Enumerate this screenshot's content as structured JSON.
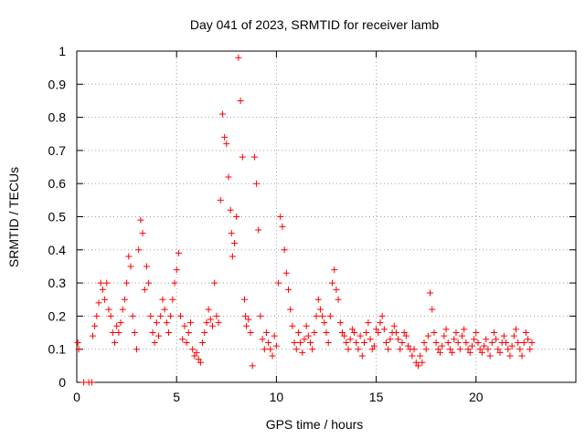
{
  "chart_data": {
    "type": "scatter",
    "title": "Day 041 of 2023, SRMTID for receiver lamb",
    "xlabel": "GPS time / hours",
    "ylabel": "SRMTID / TECUs",
    "xlim": [
      0,
      25
    ],
    "ylim": [
      0,
      1
    ],
    "xticks": [
      0,
      5,
      10,
      15,
      20
    ],
    "xtick_labels": [
      "0",
      "5",
      "10",
      "15",
      "20"
    ],
    "yticks": [
      0,
      0.1,
      0.2,
      0.3,
      0.4,
      0.5,
      0.6,
      0.7,
      0.8,
      0.9,
      1.0
    ],
    "ytick_labels": [
      "0",
      "0.1",
      "0.2",
      "0.3",
      "0.4",
      "0.5",
      "0.6",
      "0.7",
      "0.8",
      "0.9",
      "1"
    ],
    "grid": true,
    "marker": "+",
    "color": "#ff0000",
    "series": [
      {
        "name": "SRMTID",
        "x": [
          0.05,
          0.1,
          0.35,
          0.6,
          0.75,
          0.8,
          0.9,
          1.0,
          1.1,
          1.2,
          1.3,
          1.4,
          1.5,
          1.6,
          1.7,
          1.8,
          1.9,
          2.0,
          2.1,
          2.2,
          2.3,
          2.4,
          2.5,
          2.6,
          2.7,
          2.8,
          2.9,
          3.0,
          3.1,
          3.2,
          3.3,
          3.4,
          3.5,
          3.6,
          3.7,
          3.8,
          3.9,
          4.0,
          4.1,
          4.2,
          4.3,
          4.4,
          4.5,
          4.6,
          4.7,
          4.8,
          4.9,
          5.0,
          5.1,
          5.2,
          5.3,
          5.4,
          5.5,
          5.6,
          5.7,
          5.8,
          5.9,
          6.0,
          6.1,
          6.2,
          6.3,
          6.4,
          6.5,
          6.6,
          6.7,
          6.8,
          6.9,
          7.0,
          7.1,
          7.2,
          7.3,
          7.4,
          7.5,
          7.6,
          7.7,
          7.75,
          7.8,
          7.9,
          8.0,
          8.1,
          8.2,
          8.3,
          8.4,
          8.45,
          8.5,
          8.6,
          8.7,
          8.8,
          8.9,
          9.0,
          9.1,
          9.2,
          9.3,
          9.4,
          9.5,
          9.6,
          9.7,
          9.8,
          9.9,
          10.0,
          10.1,
          10.2,
          10.3,
          10.4,
          10.5,
          10.6,
          10.7,
          10.8,
          10.9,
          11.0,
          11.1,
          11.2,
          11.3,
          11.4,
          11.5,
          11.6,
          11.7,
          11.8,
          11.9,
          12.0,
          12.1,
          12.2,
          12.3,
          12.4,
          12.5,
          12.6,
          12.7,
          12.8,
          12.9,
          13.0,
          13.1,
          13.2,
          13.3,
          13.4,
          13.5,
          13.6,
          13.7,
          13.8,
          13.9,
          14.0,
          14.1,
          14.2,
          14.3,
          14.4,
          14.5,
          14.6,
          14.7,
          14.8,
          14.9,
          15.0,
          15.1,
          15.2,
          15.3,
          15.4,
          15.5,
          15.6,
          15.7,
          15.8,
          15.9,
          16.0,
          16.1,
          16.2,
          16.3,
          16.4,
          16.5,
          16.6,
          16.7,
          16.8,
          16.9,
          17.0,
          17.1,
          17.2,
          17.3,
          17.4,
          17.5,
          17.6,
          17.7,
          17.8,
          17.9,
          18.0,
          18.1,
          18.2,
          18.3,
          18.4,
          18.5,
          18.6,
          18.7,
          18.8,
          18.9,
          19.0,
          19.1,
          19.2,
          19.3,
          19.4,
          19.5,
          19.6,
          19.7,
          19.8,
          19.9,
          20.0,
          20.1,
          20.2,
          20.3,
          20.4,
          20.5,
          20.6,
          20.7,
          20.8,
          20.9,
          21.0,
          21.1,
          21.2,
          21.3,
          21.4,
          21.5,
          21.6,
          21.7,
          21.8,
          21.9,
          22.0,
          22.1,
          22.2,
          22.3,
          22.4,
          22.5,
          22.6,
          22.7,
          22.8
        ],
        "y": [
          0.12,
          0.1,
          0.0,
          0.0,
          0.0,
          0.14,
          0.17,
          0.2,
          0.24,
          0.3,
          0.28,
          0.25,
          0.3,
          0.22,
          0.2,
          0.15,
          0.12,
          0.17,
          0.15,
          0.18,
          0.22,
          0.25,
          0.3,
          0.38,
          0.35,
          0.2,
          0.15,
          0.1,
          0.4,
          0.49,
          0.45,
          0.28,
          0.35,
          0.3,
          0.2,
          0.15,
          0.12,
          0.18,
          0.14,
          0.2,
          0.25,
          0.22,
          0.18,
          0.15,
          0.2,
          0.25,
          0.3,
          0.34,
          0.39,
          0.2,
          0.13,
          0.17,
          0.12,
          0.15,
          0.18,
          0.1,
          0.08,
          0.09,
          0.07,
          0.06,
          0.12,
          0.15,
          0.18,
          0.22,
          0.19,
          0.17,
          0.3,
          0.2,
          0.18,
          0.55,
          0.81,
          0.74,
          0.72,
          0.62,
          0.52,
          0.45,
          0.38,
          0.42,
          0.5,
          0.98,
          0.85,
          0.68,
          0.25,
          0.2,
          0.17,
          0.19,
          0.15,
          0.05,
          0.68,
          0.6,
          0.46,
          0.2,
          0.13,
          0.1,
          0.15,
          0.12,
          0.1,
          0.08,
          0.14,
          0.11,
          0.3,
          0.5,
          0.47,
          0.4,
          0.33,
          0.28,
          0.22,
          0.17,
          0.12,
          0.1,
          0.15,
          0.12,
          0.09,
          0.13,
          0.17,
          0.14,
          0.12,
          0.1,
          0.15,
          0.2,
          0.25,
          0.22,
          0.2,
          0.18,
          0.15,
          0.12,
          0.2,
          0.3,
          0.34,
          0.28,
          0.25,
          0.18,
          0.15,
          0.14,
          0.12,
          0.1,
          0.13,
          0.16,
          0.15,
          0.12,
          0.1,
          0.14,
          0.08,
          0.12,
          0.15,
          0.18,
          0.13,
          0.1,
          0.11,
          0.16,
          0.15,
          0.18,
          0.2,
          0.16,
          0.12,
          0.1,
          0.13,
          0.15,
          0.17,
          0.15,
          0.13,
          0.1,
          0.12,
          0.15,
          0.14,
          0.11,
          0.1,
          0.08,
          0.1,
          0.06,
          0.05,
          0.08,
          0.06,
          0.12,
          0.1,
          0.14,
          0.27,
          0.22,
          0.15,
          0.12,
          0.1,
          0.09,
          0.11,
          0.14,
          0.16,
          0.12,
          0.1,
          0.09,
          0.13,
          0.15,
          0.12,
          0.1,
          0.14,
          0.16,
          0.12,
          0.1,
          0.09,
          0.11,
          0.13,
          0.15,
          0.12,
          0.1,
          0.09,
          0.11,
          0.13,
          0.1,
          0.08,
          0.12,
          0.15,
          0.13,
          0.1,
          0.09,
          0.12,
          0.14,
          0.12,
          0.1,
          0.08,
          0.11,
          0.14,
          0.16,
          0.12,
          0.1,
          0.08,
          0.12,
          0.15,
          0.13,
          0.1,
          0.12
        ]
      }
    ]
  }
}
